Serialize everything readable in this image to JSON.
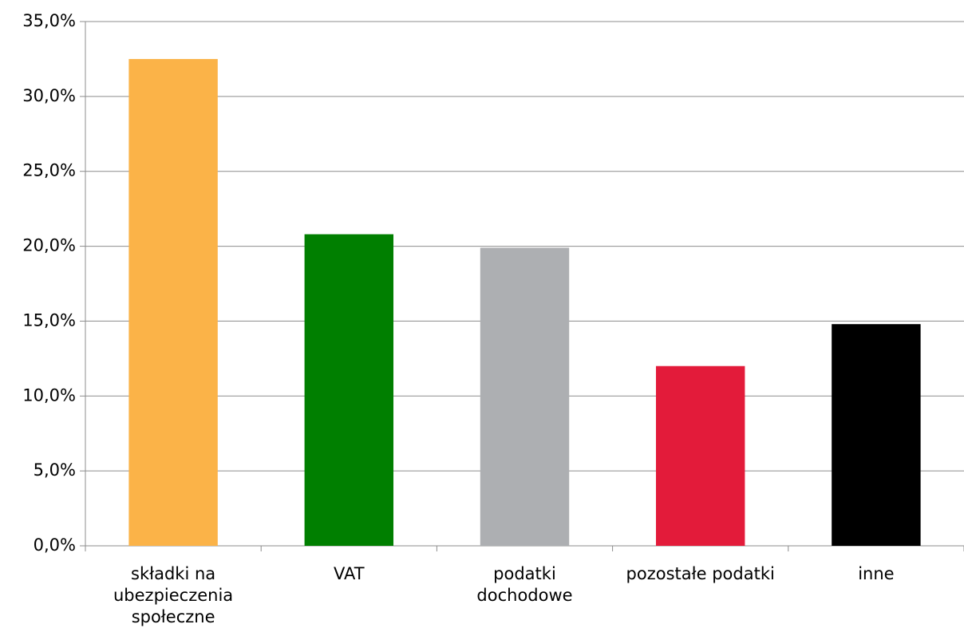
{
  "chart_data": {
    "type": "bar",
    "categories": [
      "składki na\nubezpieczenia\nspołeczne",
      "VAT",
      "podatki\ndochodowe",
      "pozostałe podatki",
      "inne"
    ],
    "values": [
      32.5,
      20.8,
      19.9,
      12.0,
      14.8
    ],
    "colors": [
      "#fbb348",
      "#007f00",
      "#adafb2",
      "#e31b3a",
      "#000000"
    ],
    "ylim": [
      0,
      35
    ],
    "yticks": [
      {
        "value": 0,
        "label": "0,0%"
      },
      {
        "value": 5,
        "label": "5,0%"
      },
      {
        "value": 10,
        "label": "10,0%"
      },
      {
        "value": 15,
        "label": "15,0%"
      },
      {
        "value": 20,
        "label": "20,0%"
      },
      {
        "value": 25,
        "label": "25,0%"
      },
      {
        "value": 30,
        "label": "30,0%"
      },
      {
        "value": 35,
        "label": "35,0%"
      }
    ],
    "grid": true
  }
}
